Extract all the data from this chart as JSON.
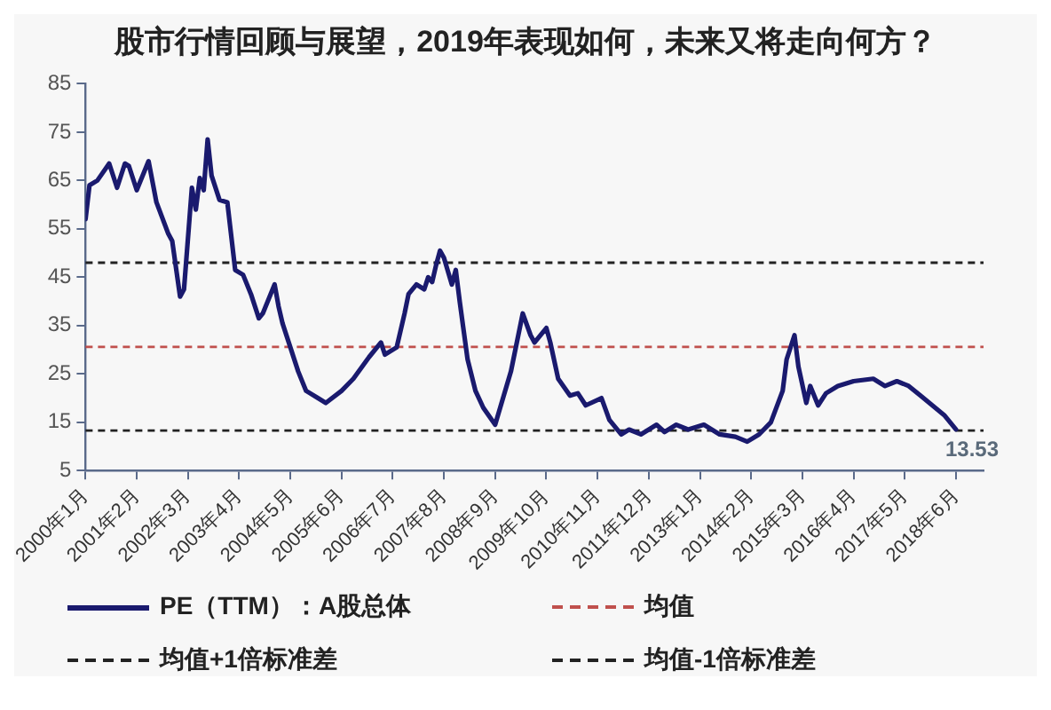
{
  "chart_data": {
    "type": "line",
    "title": "股市行情回顾与展望，2019年表现如何，未来又将走向何方？",
    "x": [
      "2000-01",
      "2000-02",
      "2000-04",
      "2000-07",
      "2000-09",
      "2000-11",
      "2000-12",
      "2001-02",
      "2001-05",
      "2001-07",
      "2001-10",
      "2001-11",
      "2002-01",
      "2002-02",
      "2002-04",
      "2002-05",
      "2002-06",
      "2002-07",
      "2002-08",
      "2002-09",
      "2002-11",
      "2003-01",
      "2003-03",
      "2003-05",
      "2003-07",
      "2003-09",
      "2003-10",
      "2004-01",
      "2004-02",
      "2004-03",
      "2004-05",
      "2004-07",
      "2004-09",
      "2004-12",
      "2005-02",
      "2005-06",
      "2005-09",
      "2006-01",
      "2006-04",
      "2006-05",
      "2006-08",
      "2006-10",
      "2006-11",
      "2007-01",
      "2007-03",
      "2007-04",
      "2007-05",
      "2007-06",
      "2007-07",
      "2007-08",
      "2007-10",
      "2007-11",
      "2007-12",
      "2008-01",
      "2008-02",
      "2008-04",
      "2008-06",
      "2008-09",
      "2009-01",
      "2009-04",
      "2009-06",
      "2009-07",
      "2009-10",
      "2009-11",
      "2010-01",
      "2010-04",
      "2010-06",
      "2010-08",
      "2010-12",
      "2011-02",
      "2011-05",
      "2011-07",
      "2011-10",
      "2012-02",
      "2012-04",
      "2012-07",
      "2012-10",
      "2013-02",
      "2013-06",
      "2013-10",
      "2014-01",
      "2014-04",
      "2014-07",
      "2014-10",
      "2014-11",
      "2015-01",
      "2015-02",
      "2015-04",
      "2015-05",
      "2015-07",
      "2015-09",
      "2015-12",
      "2016-04",
      "2016-09",
      "2016-12",
      "2017-03",
      "2017-06",
      "2017-09",
      "2017-12",
      "2018-03",
      "2018-06"
    ],
    "series": [
      {
        "name": "PE（TTM）：A股总体",
        "color": "#1a1a6e",
        "values": [
          57,
          64,
          65,
          68.5,
          63.5,
          68.5,
          68,
          63,
          69,
          60.5,
          54,
          52.5,
          41,
          42.5,
          63.5,
          59,
          65.5,
          63,
          73.5,
          66,
          61,
          60.5,
          46.5,
          45.5,
          41.5,
          36.5,
          37.5,
          43.5,
          39,
          35.5,
          30.5,
          25.5,
          21.5,
          20,
          19,
          21.5,
          24,
          28.5,
          31.5,
          29,
          30.5,
          37.5,
          41.5,
          43.5,
          42.5,
          45,
          44,
          47.5,
          50.5,
          49,
          43.5,
          46.5,
          40,
          34,
          28,
          21.5,
          18,
          14.5,
          25.5,
          37.5,
          33,
          31.5,
          34.5,
          31.5,
          24,
          20.5,
          21,
          18.5,
          20,
          15.5,
          12.5,
          13.5,
          12.5,
          14.5,
          13,
          14.5,
          13.5,
          14.5,
          12.5,
          12,
          11,
          12.5,
          15,
          21.5,
          28,
          33,
          26.5,
          19,
          22.5,
          18.5,
          21,
          22.5,
          23.5,
          24,
          22.5,
          23.5,
          22.5,
          20.5,
          18.5,
          16.5,
          13.53
        ],
        "value_labels": [
          null,
          null,
          null,
          null,
          null,
          null,
          null,
          null,
          null,
          null,
          null,
          null,
          null,
          null,
          null,
          null,
          null,
          null,
          null,
          null,
          null,
          null,
          null,
          null,
          null,
          null,
          null,
          null,
          null,
          null,
          null,
          null,
          null,
          null,
          null,
          null,
          null,
          null,
          null,
          null,
          null,
          null,
          null,
          null,
          null,
          null,
          null,
          null,
          null,
          null,
          null,
          null,
          null,
          null,
          null,
          null,
          null,
          null,
          null,
          null,
          null,
          null,
          null,
          null,
          null,
          null,
          null,
          null,
          null,
          null,
          null,
          null,
          null,
          null,
          null,
          null,
          null,
          null,
          null,
          null,
          null,
          null,
          null,
          null,
          null,
          null,
          null,
          null,
          null,
          null,
          null,
          null,
          null,
          null,
          null,
          null,
          null,
          null,
          null,
          null,
          "13.53"
        ]
      }
    ],
    "xlim": [
      "2000-01",
      "2019-01"
    ],
    "xticks": [
      {
        "value": "2000-01",
        "label": "2000年1月"
      },
      {
        "value": "2001-02",
        "label": "2001年2月"
      },
      {
        "value": "2002-03",
        "label": "2002年3月"
      },
      {
        "value": "2003-04",
        "label": "2003年4月"
      },
      {
        "value": "2004-05",
        "label": "2004年5月"
      },
      {
        "value": "2005-06",
        "label": "2005年6月"
      },
      {
        "value": "2006-07",
        "label": "2006年7月"
      },
      {
        "value": "2007-08",
        "label": "2007年8月"
      },
      {
        "value": "2008-09",
        "label": "2008年9月"
      },
      {
        "value": "2009-10",
        "label": "2009年10月"
      },
      {
        "value": "2010-11",
        "label": "2010年11月"
      },
      {
        "value": "2011-12",
        "label": "2011年12月"
      },
      {
        "value": "2013-01",
        "label": "2013年1月"
      },
      {
        "value": "2014-02",
        "label": "2014年2月"
      },
      {
        "value": "2015-03",
        "label": "2015年3月"
      },
      {
        "value": "2016-04",
        "label": "2016年4月"
      },
      {
        "value": "2017-05",
        "label": "2017年5月"
      },
      {
        "value": "2018-06",
        "label": "2018年6月"
      }
    ],
    "ylim": [
      5,
      85
    ],
    "yticks": [
      5,
      15,
      25,
      35,
      45,
      55,
      65,
      75,
      85
    ],
    "ref_lines": [
      {
        "axis": "y",
        "value": 30.6,
        "label": "均值",
        "color": "#c0504d",
        "line_style": "dashed"
      },
      {
        "axis": "y",
        "value": 48,
        "label": "均值+1倍标准差",
        "color": "#222222",
        "line_style": "dashed"
      },
      {
        "axis": "y",
        "value": 13.3,
        "label": "均值-1倍标准差",
        "color": "#222222",
        "line_style": "dashed"
      }
    ],
    "grid": false,
    "legend": "bottom"
  }
}
